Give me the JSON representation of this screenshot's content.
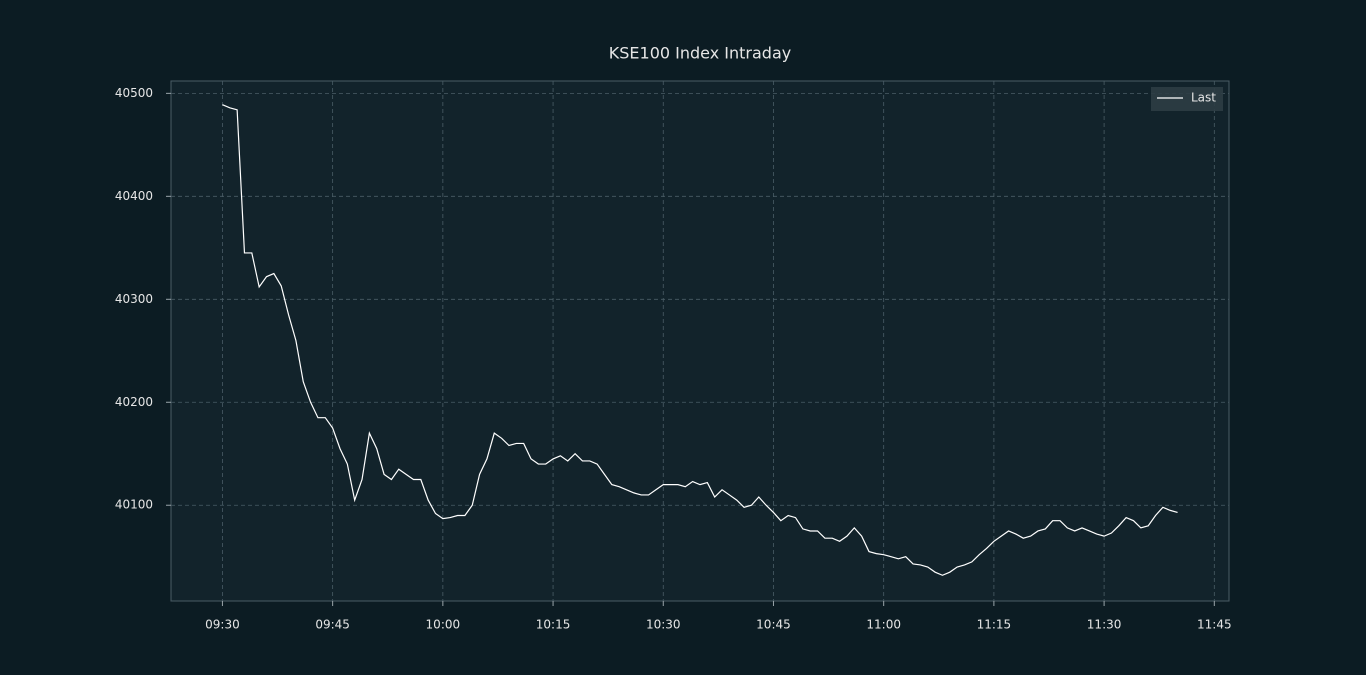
{
  "chart_data": {
    "type": "line",
    "title": "KSE100 Index Intraday",
    "x": [
      "09:30",
      "09:31",
      "09:32",
      "09:33",
      "09:34",
      "09:35",
      "09:36",
      "09:37",
      "09:38",
      "09:39",
      "09:40",
      "09:41",
      "09:42",
      "09:43",
      "09:44",
      "09:45",
      "09:46",
      "09:47",
      "09:48",
      "09:49",
      "09:50",
      "09:51",
      "09:52",
      "09:53",
      "09:54",
      "09:55",
      "09:56",
      "09:57",
      "09:58",
      "09:59",
      "10:00",
      "10:01",
      "10:02",
      "10:03",
      "10:04",
      "10:05",
      "10:06",
      "10:07",
      "10:08",
      "10:09",
      "10:10",
      "10:11",
      "10:12",
      "10:13",
      "10:14",
      "10:15",
      "10:16",
      "10:17",
      "10:18",
      "10:19",
      "10:20",
      "10:21",
      "10:22",
      "10:23",
      "10:24",
      "10:25",
      "10:26",
      "10:27",
      "10:28",
      "10:29",
      "10:30",
      "10:31",
      "10:32",
      "10:33",
      "10:34",
      "10:35",
      "10:36",
      "10:37",
      "10:38",
      "10:39",
      "10:40",
      "10:41",
      "10:42",
      "10:43",
      "10:44",
      "10:45",
      "10:46",
      "10:47",
      "10:48",
      "10:49",
      "10:50",
      "10:51",
      "10:52",
      "10:53",
      "10:54",
      "10:55",
      "10:56",
      "10:57",
      "10:58",
      "10:59",
      "11:00",
      "11:01",
      "11:02",
      "11:03",
      "11:04",
      "11:05",
      "11:06",
      "11:07",
      "11:08",
      "11:09",
      "11:10",
      "11:11",
      "11:12",
      "11:13",
      "11:14",
      "11:15",
      "11:16",
      "11:17",
      "11:18",
      "11:19",
      "11:20",
      "11:21",
      "11:22",
      "11:23",
      "11:24",
      "11:25",
      "11:26",
      "11:27",
      "11:28",
      "11:29",
      "11:30",
      "11:31",
      "11:32",
      "11:33",
      "11:34",
      "11:35",
      "11:36",
      "11:37",
      "11:38",
      "11:39",
      "11:40"
    ],
    "series": [
      {
        "name": "Last",
        "color": "#ffffff",
        "values": [
          40489,
          40486,
          40484,
          40345,
          40345,
          40312,
          40322,
          40325,
          40313,
          40285,
          40260,
          40220,
          40200,
          40185,
          40185,
          40175,
          40155,
          40140,
          40105,
          40125,
          40170,
          40155,
          40130,
          40125,
          40135,
          40130,
          40125,
          40125,
          40105,
          40092,
          40087,
          40088,
          40090,
          40090,
          40100,
          40130,
          40145,
          40170,
          40165,
          40158,
          40160,
          40160,
          40145,
          40140,
          40140,
          40145,
          40148,
          40143,
          40150,
          40143,
          40143,
          40140,
          40130,
          40120,
          40118,
          40115,
          40112,
          40110,
          40110,
          40115,
          40120,
          40120,
          40120,
          40118,
          40123,
          40120,
          40122,
          40108,
          40115,
          40110,
          40105,
          40098,
          40100,
          40108,
          40100,
          40093,
          40085,
          40090,
          40088,
          40077,
          40075,
          40075,
          40068,
          40068,
          40065,
          40070,
          40078,
          40070,
          40055,
          40053,
          40052,
          40050,
          40048,
          40050,
          40043,
          40042,
          40040,
          40035,
          40032,
          40035,
          40040,
          40042,
          40045,
          40052,
          40058,
          40065,
          40070,
          40075,
          40072,
          40068,
          40070,
          40075,
          40077,
          40085,
          40085,
          40078,
          40075,
          40078,
          40075,
          40072,
          40070,
          40073,
          40080,
          40088,
          40085,
          40078,
          40080,
          40090,
          40098,
          40095,
          40093
        ]
      }
    ],
    "xlim": [
      "09:23",
      "11:47"
    ],
    "xticks": [
      "09:30",
      "09:45",
      "10:00",
      "10:15",
      "10:30",
      "10:45",
      "11:00",
      "11:15",
      "11:30",
      "11:45"
    ],
    "ylim": [
      40007,
      40512
    ],
    "yticks": [
      40100,
      40200,
      40300,
      40400,
      40500
    ],
    "grid": true,
    "legend": "upper right"
  }
}
